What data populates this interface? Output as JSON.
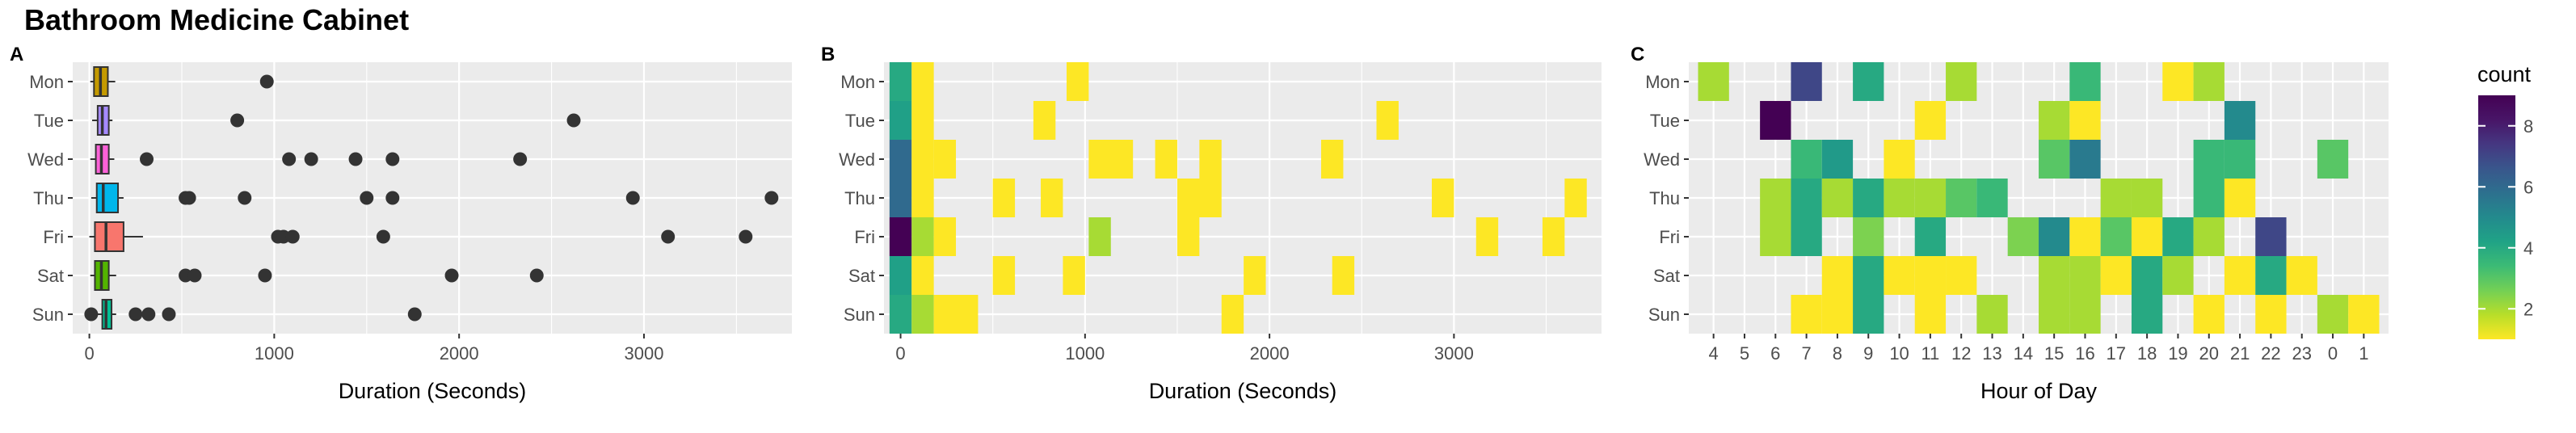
{
  "title": "Bathroom Medicine Cabinet",
  "chart_data": [
    {
      "panel": "A",
      "type": "boxplot",
      "xlabel": "Duration (Seconds)",
      "xlim": [
        -90,
        3800
      ],
      "x_ticks": [
        0,
        1000,
        2000,
        3000
      ],
      "categories": [
        "Mon",
        "Tue",
        "Wed",
        "Thu",
        "Fri",
        "Sat",
        "Sun"
      ],
      "colors": [
        "#C49A00",
        "#A58AFF",
        "#FB61D7",
        "#00B6EB",
        "#F8766D",
        "#53B400",
        "#00C094"
      ],
      "boxes": [
        {
          "day": "Mon",
          "whisker_low": 5,
          "q1": 25,
          "median": 60,
          "q3": 100,
          "whisker_high": 140
        },
        {
          "day": "Tue",
          "whisker_low": 15,
          "q1": 45,
          "median": 70,
          "q3": 105,
          "whisker_high": 125
        },
        {
          "day": "Wed",
          "whisker_low": 5,
          "q1": 35,
          "median": 65,
          "q3": 105,
          "whisker_high": 135
        },
        {
          "day": "Thu",
          "whisker_low": 10,
          "q1": 40,
          "median": 75,
          "q3": 155,
          "whisker_high": 185
        },
        {
          "day": "Fri",
          "whisker_low": 0,
          "q1": 30,
          "median": 90,
          "q3": 185,
          "whisker_high": 290
        },
        {
          "day": "Sat",
          "whisker_low": 5,
          "q1": 30,
          "median": 65,
          "q3": 105,
          "whisker_high": 145
        },
        {
          "day": "Sun",
          "whisker_low": 30,
          "q1": 70,
          "median": 90,
          "q3": 120,
          "whisker_high": 145
        }
      ],
      "outliers": [
        {
          "day": "Mon",
          "x": [
            960
          ]
        },
        {
          "day": "Tue",
          "x": [
            800,
            2620
          ]
        },
        {
          "day": "Wed",
          "x": [
            310,
            1080,
            1200,
            1440,
            1640,
            2330
          ]
        },
        {
          "day": "Thu",
          "x": [
            520,
            540,
            840,
            1500,
            1640,
            2940,
            3690
          ]
        },
        {
          "day": "Fri",
          "x": [
            1020,
            1050,
            1100,
            1590,
            3130,
            3550
          ]
        },
        {
          "day": "Sat",
          "x": [
            520,
            570,
            950,
            1960,
            2420
          ]
        },
        {
          "day": "Sun",
          "x": [
            10,
            250,
            320,
            430,
            1760
          ]
        }
      ]
    },
    {
      "panel": "B",
      "type": "heatmap",
      "xlabel": "Duration (Seconds)",
      "xlim": [
        -90,
        3800
      ],
      "x_ticks": [
        0,
        1000,
        2000,
        3000
      ],
      "categories": [
        "Mon",
        "Tue",
        "Wed",
        "Thu",
        "Fri",
        "Sat",
        "Sun"
      ],
      "bin_width": 120,
      "cells": [
        {
          "day": "Mon",
          "x0": -60,
          "x1": 60,
          "count": 4
        },
        {
          "day": "Mon",
          "x0": 60,
          "x1": 180,
          "count": 1
        },
        {
          "day": "Mon",
          "x0": 900,
          "x1": 1020,
          "count": 1
        },
        {
          "day": "Tue",
          "x0": -60,
          "x1": 60,
          "count": 4.3
        },
        {
          "day": "Tue",
          "x0": 60,
          "x1": 180,
          "count": 1
        },
        {
          "day": "Tue",
          "x0": 720,
          "x1": 840,
          "count": 1
        },
        {
          "day": "Tue",
          "x0": 2580,
          "x1": 2700,
          "count": 1
        },
        {
          "day": "Wed",
          "x0": -60,
          "x1": 60,
          "count": 6
        },
        {
          "day": "Wed",
          "x0": 60,
          "x1": 180,
          "count": 1
        },
        {
          "day": "Wed",
          "x0": 180,
          "x1": 300,
          "count": 1
        },
        {
          "day": "Wed",
          "x0": 1020,
          "x1": 1260,
          "count": 1
        },
        {
          "day": "Wed",
          "x0": 1380,
          "x1": 1500,
          "count": 1
        },
        {
          "day": "Wed",
          "x0": 1620,
          "x1": 1740,
          "count": 1
        },
        {
          "day": "Wed",
          "x0": 2280,
          "x1": 2400,
          "count": 1
        },
        {
          "day": "Thu",
          "x0": -60,
          "x1": 60,
          "count": 6
        },
        {
          "day": "Thu",
          "x0": 60,
          "x1": 180,
          "count": 1
        },
        {
          "day": "Thu",
          "x0": 500,
          "x1": 620,
          "count": 1
        },
        {
          "day": "Thu",
          "x0": 760,
          "x1": 880,
          "count": 1
        },
        {
          "day": "Thu",
          "x0": 1500,
          "x1": 1740,
          "count": 1
        },
        {
          "day": "Thu",
          "x0": 2880,
          "x1": 3000,
          "count": 1
        },
        {
          "day": "Thu",
          "x0": 3600,
          "x1": 3720,
          "count": 1
        },
        {
          "day": "Fri",
          "x0": -60,
          "x1": 60,
          "count": 9
        },
        {
          "day": "Fri",
          "x0": 60,
          "x1": 180,
          "count": 2
        },
        {
          "day": "Fri",
          "x0": 180,
          "x1": 300,
          "count": 1
        },
        {
          "day": "Fri",
          "x0": 1020,
          "x1": 1140,
          "count": 2
        },
        {
          "day": "Fri",
          "x0": 1500,
          "x1": 1620,
          "count": 1
        },
        {
          "day": "Fri",
          "x0": 3120,
          "x1": 3240,
          "count": 1
        },
        {
          "day": "Fri",
          "x0": 3480,
          "x1": 3600,
          "count": 1
        },
        {
          "day": "Sat",
          "x0": -60,
          "x1": 60,
          "count": 4.3
        },
        {
          "day": "Sat",
          "x0": 60,
          "x1": 180,
          "count": 1
        },
        {
          "day": "Sat",
          "x0": 500,
          "x1": 620,
          "count": 1
        },
        {
          "day": "Sat",
          "x0": 880,
          "x1": 1000,
          "count": 1
        },
        {
          "day": "Sat",
          "x0": 1860,
          "x1": 1980,
          "count": 1
        },
        {
          "day": "Sat",
          "x0": 2340,
          "x1": 2460,
          "count": 1
        },
        {
          "day": "Sun",
          "x0": -60,
          "x1": 60,
          "count": 4
        },
        {
          "day": "Sun",
          "x0": 60,
          "x1": 180,
          "count": 2
        },
        {
          "day": "Sun",
          "x0": 180,
          "x1": 420,
          "count": 1
        },
        {
          "day": "Sun",
          "x0": 1740,
          "x1": 1860,
          "count": 1
        }
      ]
    },
    {
      "panel": "C",
      "type": "heatmap",
      "xlabel": "Hour of Day",
      "x_ticks": [
        "4",
        "5",
        "6",
        "7",
        "8",
        "9",
        "10",
        "11",
        "12",
        "13",
        "14",
        "15",
        "16",
        "17",
        "18",
        "19",
        "20",
        "21",
        "22",
        "23",
        "0",
        "1"
      ],
      "categories": [
        "Mon",
        "Tue",
        "Wed",
        "Thu",
        "Fri",
        "Sat",
        "Sun"
      ],
      "cells": [
        {
          "day": "Mon",
          "hour": "4",
          "count": 2
        },
        {
          "day": "Mon",
          "hour": "7",
          "count": 7
        },
        {
          "day": "Mon",
          "hour": "9",
          "count": 4
        },
        {
          "day": "Mon",
          "hour": "12",
          "count": 2
        },
        {
          "day": "Mon",
          "hour": "16",
          "count": 3.5
        },
        {
          "day": "Mon",
          "hour": "19",
          "count": 1
        },
        {
          "day": "Mon",
          "hour": "20",
          "count": 2
        },
        {
          "day": "Tue",
          "hour": "6",
          "count": 9
        },
        {
          "day": "Tue",
          "hour": "11",
          "count": 1
        },
        {
          "day": "Tue",
          "hour": "15",
          "count": 2
        },
        {
          "day": "Tue",
          "hour": "16",
          "count": 1
        },
        {
          "day": "Tue",
          "hour": "21",
          "count": 5
        },
        {
          "day": "Wed",
          "hour": "7",
          "count": 3.5
        },
        {
          "day": "Wed",
          "hour": "8",
          "count": 4.5
        },
        {
          "day": "Wed",
          "hour": "10",
          "count": 1
        },
        {
          "day": "Wed",
          "hour": "15",
          "count": 3
        },
        {
          "day": "Wed",
          "hour": "16",
          "count": 5.5
        },
        {
          "day": "Wed",
          "hour": "20",
          "count": 3.5
        },
        {
          "day": "Wed",
          "hour": "21",
          "count": 3.5
        },
        {
          "day": "Wed",
          "hour": "0",
          "count": 3
        },
        {
          "day": "Thu",
          "hour": "6",
          "count": 2
        },
        {
          "day": "Thu",
          "hour": "7",
          "count": 4
        },
        {
          "day": "Thu",
          "hour": "8",
          "count": 2
        },
        {
          "day": "Thu",
          "hour": "9",
          "count": 4
        },
        {
          "day": "Thu",
          "hour": "10",
          "count": 2
        },
        {
          "day": "Thu",
          "hour": "11",
          "count": 2
        },
        {
          "day": "Thu",
          "hour": "12",
          "count": 3
        },
        {
          "day": "Thu",
          "hour": "13",
          "count": 3.5
        },
        {
          "day": "Thu",
          "hour": "17",
          "count": 2
        },
        {
          "day": "Thu",
          "hour": "18",
          "count": 2
        },
        {
          "day": "Thu",
          "hour": "20",
          "count": 3.5
        },
        {
          "day": "Thu",
          "hour": "21",
          "count": 1
        },
        {
          "day": "Fri",
          "hour": "6",
          "count": 2
        },
        {
          "day": "Fri",
          "hour": "7",
          "count": 4
        },
        {
          "day": "Fri",
          "hour": "9",
          "count": 2.5
        },
        {
          "day": "Fri",
          "hour": "11",
          "count": 4
        },
        {
          "day": "Fri",
          "hour": "14",
          "count": 2.5
        },
        {
          "day": "Fri",
          "hour": "15",
          "count": 5
        },
        {
          "day": "Fri",
          "hour": "16",
          "count": 1
        },
        {
          "day": "Fri",
          "hour": "17",
          "count": 3
        },
        {
          "day": "Fri",
          "hour": "18",
          "count": 1
        },
        {
          "day": "Fri",
          "hour": "19",
          "count": 4
        },
        {
          "day": "Fri",
          "hour": "20",
          "count": 2
        },
        {
          "day": "Fri",
          "hour": "22",
          "count": 7
        },
        {
          "day": "Sat",
          "hour": "8",
          "count": 1
        },
        {
          "day": "Sat",
          "hour": "9",
          "count": 4
        },
        {
          "day": "Sat",
          "hour": "10",
          "count": 1
        },
        {
          "day": "Sat",
          "hour": "11",
          "count": 1
        },
        {
          "day": "Sat",
          "hour": "12",
          "count": 1
        },
        {
          "day": "Sat",
          "hour": "15",
          "count": 2
        },
        {
          "day": "Sat",
          "hour": "16",
          "count": 2
        },
        {
          "day": "Sat",
          "hour": "17",
          "count": 1
        },
        {
          "day": "Sat",
          "hour": "18",
          "count": 4
        },
        {
          "day": "Sat",
          "hour": "19",
          "count": 2
        },
        {
          "day": "Sat",
          "hour": "21",
          "count": 1
        },
        {
          "day": "Sat",
          "hour": "22",
          "count": 4
        },
        {
          "day": "Sat",
          "hour": "23",
          "count": 1
        },
        {
          "day": "Sun",
          "hour": "7",
          "count": 1
        },
        {
          "day": "Sun",
          "hour": "8",
          "count": 1
        },
        {
          "day": "Sun",
          "hour": "9",
          "count": 4
        },
        {
          "day": "Sun",
          "hour": "11",
          "count": 1
        },
        {
          "day": "Sun",
          "hour": "13",
          "count": 2
        },
        {
          "day": "Sun",
          "hour": "15",
          "count": 2
        },
        {
          "day": "Sun",
          "hour": "16",
          "count": 2
        },
        {
          "day": "Sun",
          "hour": "18",
          "count": 4
        },
        {
          "day": "Sun",
          "hour": "20",
          "count": 1
        },
        {
          "day": "Sun",
          "hour": "22",
          "count": 1
        },
        {
          "day": "Sun",
          "hour": "0",
          "count": 2
        },
        {
          "day": "Sun",
          "hour": "1",
          "count": 1
        }
      ]
    }
  ],
  "legend": {
    "title": "count",
    "min": 1,
    "max": 9,
    "ticks": [
      2,
      4,
      6,
      8
    ],
    "placement": "right",
    "colors": [
      "#FDE725",
      "#B8DE29",
      "#73D055",
      "#3CBB75",
      "#20A386",
      "#238A8D",
      "#2D708E",
      "#39568C",
      "#453781",
      "#481567",
      "#440154"
    ]
  }
}
